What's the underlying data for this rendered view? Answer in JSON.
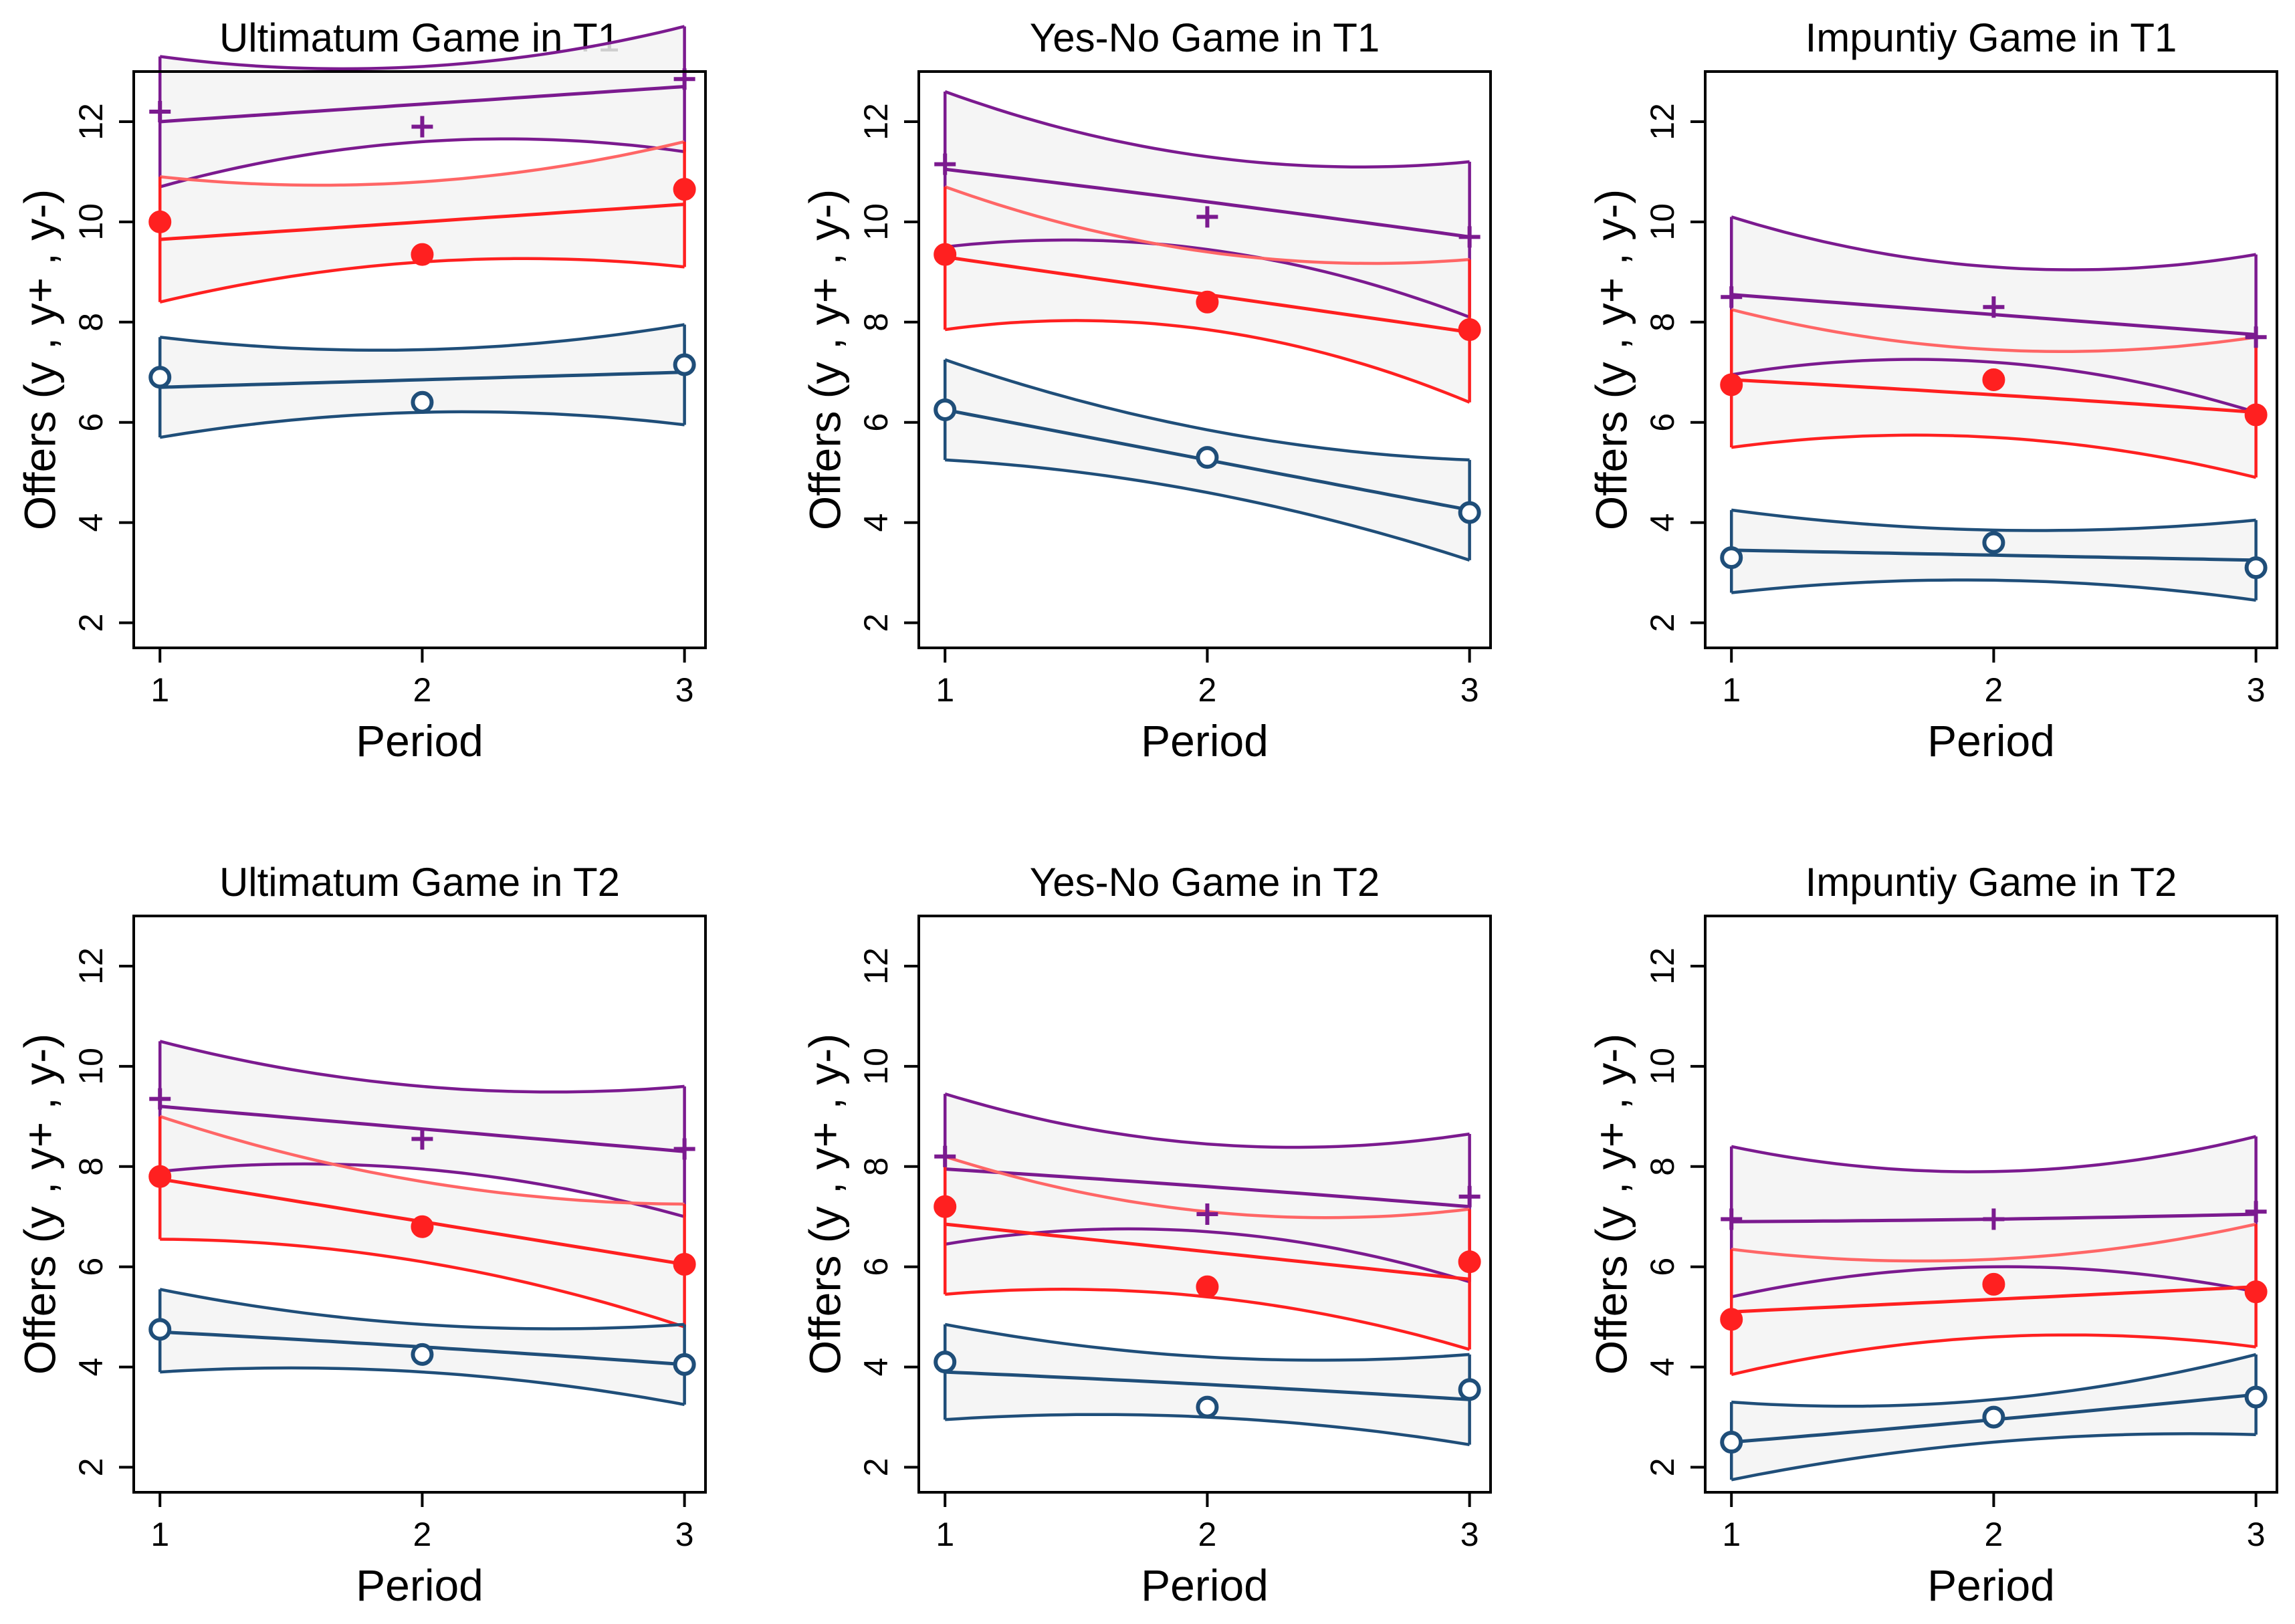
{
  "figure": {
    "xlabel": "Period",
    "ylabel": "Offers (y , y+ , y-)",
    "xticks": [
      1,
      2,
      3
    ],
    "yticks": [
      2,
      4,
      6,
      8,
      10,
      12
    ],
    "ylim": [
      1.5,
      13.0
    ],
    "xlim": [
      0.9,
      3.08
    ]
  },
  "colors": {
    "upper": "#7b1a8f",
    "mean": "#ff2020",
    "mean_band": "#ff6666",
    "lower": "#1f4e79",
    "band_fill": "#f3f3f3",
    "overlap_fill": "#e6e6e6",
    "axis": "#000000"
  },
  "chart_data": [
    {
      "type": "line",
      "title": "Ultimatum Game in T1",
      "x": [
        1,
        2,
        3
      ],
      "series": [
        {
          "name": "y+",
          "marker": "plus",
          "points": [
            12.2,
            11.9,
            12.85
          ],
          "fit": [
            12.0,
            12.35,
            12.7
          ],
          "ci_low": [
            10.7,
            11.6,
            11.4
          ],
          "ci_high": [
            13.3,
            13.1,
            13.9
          ]
        },
        {
          "name": "y",
          "marker": "filled-circle",
          "points": [
            10.0,
            9.35,
            10.65
          ],
          "fit": [
            9.65,
            10.0,
            10.35
          ],
          "ci_low": [
            8.4,
            9.2,
            9.1
          ],
          "ci_high": [
            10.9,
            10.8,
            11.6
          ]
        },
        {
          "name": "y-",
          "marker": "hollow-circle",
          "points": [
            6.9,
            6.4,
            7.15
          ],
          "fit": [
            6.7,
            6.85,
            7.0
          ],
          "ci_low": [
            5.7,
            6.2,
            5.95
          ],
          "ci_high": [
            7.7,
            7.45,
            7.95
          ]
        }
      ]
    },
    {
      "type": "line",
      "title": "Yes-No Game in T1",
      "x": [
        1,
        2,
        3
      ],
      "series": [
        {
          "name": "y+",
          "marker": "plus",
          "points": [
            11.15,
            10.1,
            9.7
          ],
          "fit": [
            11.05,
            10.4,
            9.7
          ],
          "ci_low": [
            9.5,
            9.45,
            8.1
          ],
          "ci_high": [
            12.6,
            11.3,
            11.2
          ]
        },
        {
          "name": "y",
          "marker": "filled-circle",
          "points": [
            9.35,
            8.4,
            7.85
          ],
          "fit": [
            9.3,
            8.55,
            7.8
          ],
          "ci_low": [
            7.85,
            7.85,
            6.4
          ],
          "ci_high": [
            10.7,
            9.4,
            9.25
          ]
        },
        {
          "name": "y-",
          "marker": "hollow-circle",
          "points": [
            6.25,
            5.3,
            4.2
          ],
          "fit": [
            6.25,
            5.25,
            4.25
          ],
          "ci_low": [
            5.25,
            4.6,
            3.25
          ],
          "ci_high": [
            7.25,
            5.85,
            5.25
          ]
        }
      ]
    },
    {
      "type": "line",
      "title": "Impuntiy Game in T1",
      "x": [
        1,
        2,
        3
      ],
      "series": [
        {
          "name": "y+",
          "marker": "plus",
          "points": [
            8.5,
            8.3,
            7.7
          ],
          "fit": [
            8.55,
            8.15,
            7.75
          ],
          "ci_low": [
            6.95,
            7.2,
            6.2
          ],
          "ci_high": [
            10.1,
            9.1,
            9.35
          ]
        },
        {
          "name": "y",
          "marker": "filled-circle",
          "points": [
            6.75,
            6.85,
            6.15
          ],
          "fit": [
            6.85,
            6.55,
            6.2
          ],
          "ci_low": [
            5.5,
            5.7,
            4.9
          ],
          "ci_high": [
            8.25,
            7.45,
            7.7
          ]
        },
        {
          "name": "y-",
          "marker": "hollow-circle",
          "points": [
            3.3,
            3.6,
            3.1
          ],
          "fit": [
            3.45,
            3.35,
            3.25
          ],
          "ci_low": [
            2.6,
            2.85,
            2.45
          ],
          "ci_high": [
            4.25,
            3.85,
            4.05
          ]
        }
      ]
    },
    {
      "type": "line",
      "title": "Ultimatum Game in T2",
      "x": [
        1,
        2,
        3
      ],
      "series": [
        {
          "name": "y+",
          "marker": "plus",
          "points": [
            9.35,
            8.55,
            8.35
          ],
          "fit": [
            9.2,
            8.75,
            8.3
          ],
          "ci_low": [
            7.9,
            7.95,
            7.0
          ],
          "ci_high": [
            10.5,
            9.6,
            9.6
          ]
        },
        {
          "name": "y",
          "marker": "filled-circle",
          "points": [
            7.8,
            6.8,
            6.05
          ],
          "fit": [
            7.75,
            6.9,
            6.05
          ],
          "ci_low": [
            6.55,
            6.1,
            4.8
          ],
          "ci_high": [
            9.0,
            7.7,
            7.25
          ]
        },
        {
          "name": "y-",
          "marker": "hollow-circle",
          "points": [
            4.75,
            4.25,
            4.05
          ],
          "fit": [
            4.7,
            4.4,
            4.05
          ],
          "ci_low": [
            3.9,
            3.9,
            3.25
          ],
          "ci_high": [
            5.55,
            4.85,
            4.85
          ]
        }
      ]
    },
    {
      "type": "line",
      "title": "Yes-No Game in T2",
      "x": [
        1,
        2,
        3
      ],
      "series": [
        {
          "name": "y+",
          "marker": "plus",
          "points": [
            8.2,
            7.05,
            7.4
          ],
          "fit": [
            7.95,
            7.6,
            7.2
          ],
          "ci_low": [
            6.45,
            6.7,
            5.7
          ],
          "ci_high": [
            9.45,
            8.45,
            8.65
          ]
        },
        {
          "name": "y",
          "marker": "filled-circle",
          "points": [
            7.2,
            5.6,
            6.1
          ],
          "fit": [
            6.85,
            6.3,
            5.75
          ],
          "ci_low": [
            5.45,
            5.4,
            4.35
          ],
          "ci_high": [
            8.2,
            7.1,
            7.15
          ]
        },
        {
          "name": "y-",
          "marker": "hollow-circle",
          "points": [
            4.1,
            3.2,
            3.55
          ],
          "fit": [
            3.9,
            3.65,
            3.35
          ],
          "ci_low": [
            2.95,
            3.0,
            2.45
          ],
          "ci_high": [
            4.85,
            4.2,
            4.25
          ]
        }
      ]
    },
    {
      "type": "line",
      "title": "Impuntiy Game in T2",
      "x": [
        1,
        2,
        3
      ],
      "series": [
        {
          "name": "y+",
          "marker": "plus",
          "points": [
            6.95,
            6.95,
            7.1
          ],
          "fit": [
            6.9,
            6.95,
            7.05
          ],
          "ci_low": [
            5.4,
            6.0,
            5.5
          ],
          "ci_high": [
            8.4,
            7.9,
            8.6
          ]
        },
        {
          "name": "y",
          "marker": "filled-circle",
          "points": [
            4.95,
            5.65,
            5.5
          ],
          "fit": [
            5.1,
            5.35,
            5.6
          ],
          "ci_low": [
            3.85,
            4.6,
            4.4
          ],
          "ci_high": [
            6.35,
            6.15,
            6.85
          ]
        },
        {
          "name": "y-",
          "marker": "hollow-circle",
          "points": [
            2.5,
            3.0,
            3.4
          ],
          "fit": [
            2.5,
            2.95,
            3.45
          ],
          "ci_low": [
            1.75,
            2.5,
            2.65
          ],
          "ci_high": [
            3.3,
            3.35,
            4.25
          ]
        }
      ]
    }
  ]
}
